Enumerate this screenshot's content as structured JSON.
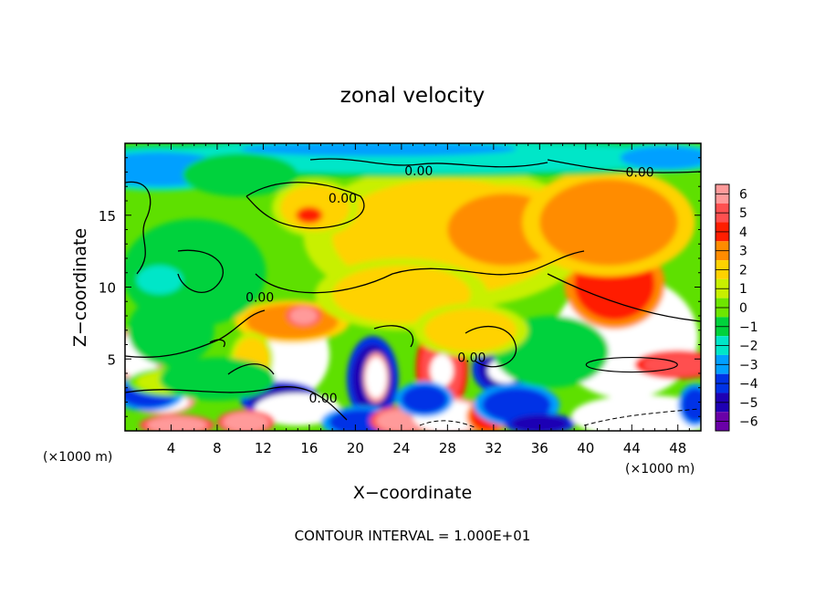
{
  "chart_data": {
    "type": "heatmap",
    "title": "zonal velocity",
    "xlabel": "X−coordinate",
    "ylabel": "Z−coordinate",
    "x_unit_label": "(×1000 m)",
    "y_unit_label": "(×1000 m)",
    "footer": "CONTOUR INTERVAL = 1.000E+01",
    "xlim": [
      0,
      50
    ],
    "ylim": [
      0,
      20
    ],
    "x_ticks": [
      4,
      8,
      12,
      16,
      20,
      24,
      28,
      32,
      36,
      40,
      44,
      48
    ],
    "y_ticks": [
      5,
      10,
      15
    ],
    "colorbar": {
      "levels": [
        6,
        5,
        4,
        3,
        2,
        1,
        0,
        -1,
        -2,
        -3,
        -4,
        -5,
        -6
      ],
      "labels": [
        "6",
        "5",
        "4",
        "3",
        "2",
        "1",
        "0",
        "−1",
        "−2",
        "−3",
        "−4",
        "−5",
        "−6"
      ],
      "colors": [
        "#ff9a9a",
        "#ff5050",
        "#ff1e00",
        "#ff8c00",
        "#ffd200",
        "#c8f000",
        "#6ee600",
        "#00d23c",
        "#00e6c8",
        "#00a0ff",
        "#0032e6",
        "#1e00b4",
        "#6a00a8"
      ]
    },
    "contour_labels": [
      {
        "text": "0.00",
        "x": 25.5,
        "y": 18.1
      },
      {
        "text": "0.00",
        "x": 44.7,
        "y": 18.0
      },
      {
        "text": "0.00",
        "x": 18.9,
        "y": 16.2
      },
      {
        "text": "0.00",
        "x": 11.7,
        "y": 9.3
      },
      {
        "text": "0.00",
        "x": 30.1,
        "y": 5.1
      },
      {
        "text": "0.00",
        "x": 17.2,
        "y": 2.3
      }
    ],
    "blobs": [
      {
        "x": 1.2,
        "y": 5.3,
        "rx": 1.8,
        "ry": 1.6,
        "v": 7
      },
      {
        "x": 3.2,
        "y": 2.0,
        "rx": 2.3,
        "ry": 0.7,
        "v": 7
      },
      {
        "x": 4.5,
        "y": 0.4,
        "rx": 2.6,
        "ry": 0.6,
        "v": 6
      },
      {
        "x": 2.0,
        "y": 2.6,
        "rx": 2.5,
        "ry": 1.0,
        "v": -3.5
      },
      {
        "x": 4.0,
        "y": 3.4,
        "rx": 3.0,
        "ry": 0.8,
        "v": 1.5
      },
      {
        "x": 14.0,
        "y": 5.3,
        "rx": 3.0,
        "ry": 2.5,
        "v": 7.5
      },
      {
        "x": 14.5,
        "y": 7.6,
        "rx": 4.0,
        "ry": 1.2,
        "v": 3.5
      },
      {
        "x": 15.5,
        "y": 8.0,
        "rx": 1.2,
        "ry": 0.6,
        "v": 6
      },
      {
        "x": 11.0,
        "y": 5.0,
        "rx": 1.5,
        "ry": 1.5,
        "v": 2.5
      },
      {
        "x": 13.5,
        "y": 2.2,
        "rx": 2.8,
        "ry": 1.0,
        "v": -4.5
      },
      {
        "x": 15.0,
        "y": 1.5,
        "rx": 3.0,
        "ry": 0.9,
        "v": 8
      },
      {
        "x": 10.5,
        "y": 0.6,
        "rx": 2.0,
        "ry": 0.7,
        "v": 6
      },
      {
        "x": 21.5,
        "y": 3.6,
        "rx": 1.8,
        "ry": 2.4,
        "v": -5
      },
      {
        "x": 21.8,
        "y": 3.7,
        "rx": 0.9,
        "ry": 1.4,
        "v": 7
      },
      {
        "x": 20.5,
        "y": 0.6,
        "rx": 2.8,
        "ry": 0.9,
        "v": -4
      },
      {
        "x": 24.0,
        "y": 0.7,
        "rx": 2.2,
        "ry": 0.8,
        "v": 6
      },
      {
        "x": 27.5,
        "y": 4.3,
        "rx": 1.8,
        "ry": 2.6,
        "v": 5
      },
      {
        "x": 27.5,
        "y": 4.2,
        "rx": 0.8,
        "ry": 0.9,
        "v": 8
      },
      {
        "x": 28.0,
        "y": 1.0,
        "rx": 3.0,
        "ry": 1.1,
        "v": 7
      },
      {
        "x": 26.0,
        "y": 2.2,
        "rx": 2.0,
        "ry": 1.0,
        "v": -4
      },
      {
        "x": 33.0,
        "y": 4.3,
        "rx": 2.3,
        "ry": 1.5,
        "v": -4.5
      },
      {
        "x": 33.0,
        "y": 4.2,
        "rx": 1.2,
        "ry": 0.7,
        "v": 8
      },
      {
        "x": 31.5,
        "y": 1.0,
        "rx": 1.5,
        "ry": 1.0,
        "v": 4
      },
      {
        "x": 34.0,
        "y": 1.8,
        "rx": 3.0,
        "ry": 1.2,
        "v": -3.5
      },
      {
        "x": 36.0,
        "y": 0.5,
        "rx": 2.5,
        "ry": 0.6,
        "v": -4.5
      },
      {
        "x": 43.5,
        "y": 6.5,
        "rx": 5.0,
        "ry": 3.4,
        "v": 8
      },
      {
        "x": 42.5,
        "y": 10.2,
        "rx": 3.5,
        "ry": 2.5,
        "v": 4.5
      },
      {
        "x": 48.0,
        "y": 4.6,
        "rx": 3.0,
        "ry": 0.8,
        "v": 5
      },
      {
        "x": 45.0,
        "y": 1.0,
        "rx": 5.0,
        "ry": 1.2,
        "v": 8
      },
      {
        "x": 49.5,
        "y": 1.8,
        "rx": 1.2,
        "ry": 1.2,
        "v": -4
      },
      {
        "x": 28.0,
        "y": 13.5,
        "rx": 10.0,
        "ry": 4.0,
        "v": 2.2
      },
      {
        "x": 33.0,
        "y": 14.0,
        "rx": 5.0,
        "ry": 2.5,
        "v": 3.0
      },
      {
        "x": 42.0,
        "y": 14.5,
        "rx": 6.0,
        "ry": 3.0,
        "v": 2.6
      },
      {
        "x": 24.0,
        "y": 9.5,
        "rx": 6.0,
        "ry": 2.0,
        "v": 2.0
      },
      {
        "x": 16.5,
        "y": 15.5,
        "rx": 3.0,
        "ry": 1.6,
        "v": 2.4
      },
      {
        "x": 16.0,
        "y": 15.0,
        "rx": 1.0,
        "ry": 0.5,
        "v": 4.2
      },
      {
        "x": 6.0,
        "y": 11.0,
        "rx": 5.0,
        "ry": 3.0,
        "v": -0.8
      },
      {
        "x": 3.0,
        "y": 10.5,
        "rx": 2.0,
        "ry": 1.0,
        "v": -1.8
      },
      {
        "x": 4.0,
        "y": 7.0,
        "rx": 3.0,
        "ry": 2.0,
        "v": -1.0
      },
      {
        "x": 25.0,
        "y": 19.0,
        "rx": 25.0,
        "ry": 1.1,
        "v": -1.6
      },
      {
        "x": 3.0,
        "y": 18.2,
        "rx": 6.0,
        "ry": 1.2,
        "v": -2.6
      },
      {
        "x": 47.0,
        "y": 19.0,
        "rx": 4.0,
        "ry": 0.8,
        "v": -2.6
      },
      {
        "x": 22.0,
        "y": 19.6,
        "rx": 12.0,
        "ry": 0.5,
        "v": -3.0
      },
      {
        "x": 10.0,
        "y": 17.8,
        "rx": 4.0,
        "ry": 1.2,
        "v": -1.2
      },
      {
        "x": 8.0,
        "y": 3.6,
        "rx": 4.0,
        "ry": 1.2,
        "v": -0.8
      },
      {
        "x": 37.0,
        "y": 5.5,
        "rx": 4.0,
        "ry": 2.0,
        "v": -0.6
      },
      {
        "x": 30.0,
        "y": 7.0,
        "rx": 4.0,
        "ry": 1.5,
        "v": 1.6
      }
    ]
  }
}
